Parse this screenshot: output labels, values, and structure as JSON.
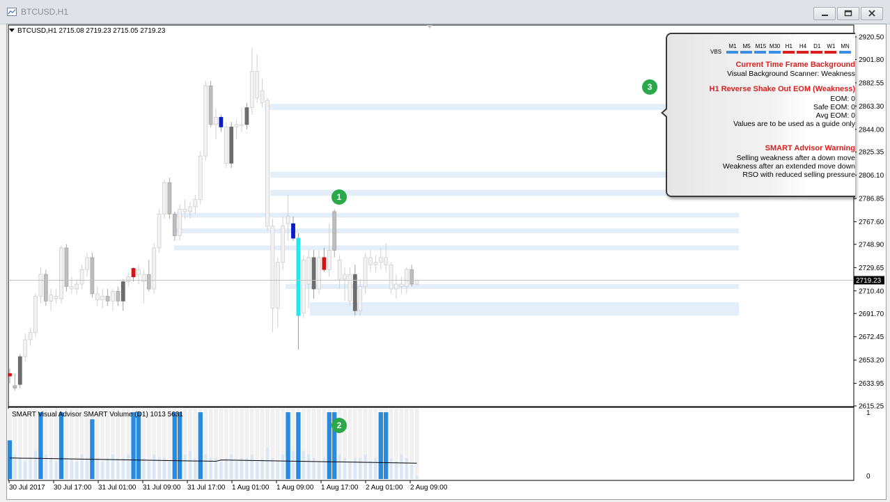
{
  "window": {
    "title": "BTCUSD,H1",
    "buttons": [
      "minimize",
      "restore",
      "close"
    ]
  },
  "chart": {
    "legend": "BTCUSD,H1  2715.08 2719.23 2715.05 2719.23",
    "current_price": "2719.23",
    "price_ticks": [
      "2920.50",
      "2901.80",
      "2882.55",
      "2863.30",
      "2844.00",
      "2825.35",
      "2806.10",
      "2786.85",
      "2767.60",
      "2748.90",
      "2729.65",
      "2710.40",
      "2691.70",
      "2672.45",
      "2653.20",
      "2633.95",
      "2615.25"
    ],
    "indicator_ticks": [
      "1",
      "0"
    ],
    "time_ticks": [
      "30 Jul 2017",
      "30 Jul 17:00",
      "31 Jul 01:00",
      "31 Jul 09:00",
      "31 Jul 17:00",
      "1 Aug 01:00",
      "1 Aug 09:00",
      "1 Aug 17:00",
      "2 Aug 01:00",
      "2 Aug 09:00"
    ],
    "indicator_label": "SMART Visual Advisor  SMART Volume (D1) 1013 5631",
    "colors": {
      "bull_candle": "#f2f2f2",
      "bear_candle": "#bdbdbd",
      "dark_candle": "#6d6d6d",
      "signal_red": "#dd1111",
      "signal_blue": "#0a1cc8",
      "signal_cyan": "#27e6ee",
      "zone": "#e3eef9",
      "vol_blue": "#2a8ae0",
      "vol_light": "#d8e6f5"
    }
  },
  "badges": [
    "1",
    "2",
    "3"
  ],
  "advisor_panel": {
    "timeframes": [
      "M1",
      "M5",
      "M15",
      "M30",
      "H1",
      "H4",
      "D1",
      "W1",
      "MN"
    ],
    "timeframe_colors": [
      "#3a8ee6",
      "#3a8ee6",
      "#3a8ee6",
      "#3a8ee6",
      "#d81e1e",
      "#d81e1e",
      "#d81e1e",
      "#d81e1e",
      "#3a8ee6"
    ],
    "vbs_label": "VBS",
    "section1_title": "Current Time Frame Background",
    "section1_line": "Visual Background Scanner: Weakness",
    "section2_title": "H1 Reverse Shake Out EOM (Weakness)",
    "section2_lines": [
      "EOM: 0",
      "Safe EOM: 0",
      "Avg EOM: 0",
      "Values are to be used as a guide only"
    ],
    "section3_title": "SMART Advisor Warning",
    "section3_lines": [
      "Selling weakness after a down move",
      "Weakness after an extended move down",
      "RSO with reduced selling pressure"
    ]
  },
  "candles": [
    {
      "o": 2640,
      "h": 2646,
      "l": 2634,
      "c": 2642,
      "t": "red"
    },
    {
      "o": 2630,
      "h": 2642,
      "l": 2628,
      "c": 2632,
      "t": "bear"
    },
    {
      "o": 2633,
      "h": 2658,
      "l": 2630,
      "c": 2656,
      "t": "dark"
    },
    {
      "o": 2656,
      "h": 2675,
      "l": 2652,
      "c": 2670,
      "t": "bull"
    },
    {
      "o": 2670,
      "h": 2680,
      "l": 2665,
      "c": 2676,
      "t": "bull"
    },
    {
      "o": 2676,
      "h": 2708,
      "l": 2672,
      "c": 2706,
      "t": "bull"
    },
    {
      "o": 2706,
      "h": 2730,
      "l": 2700,
      "c": 2724,
      "t": "bull"
    },
    {
      "o": 2724,
      "h": 2728,
      "l": 2698,
      "c": 2702,
      "t": "bear"
    },
    {
      "o": 2702,
      "h": 2712,
      "l": 2694,
      "c": 2707,
      "t": "bull"
    },
    {
      "o": 2706,
      "h": 2712,
      "l": 2700,
      "c": 2704,
      "t": "bull"
    },
    {
      "o": 2704,
      "h": 2748,
      "l": 2700,
      "c": 2746,
      "t": "bull"
    },
    {
      "o": 2746,
      "h": 2749,
      "l": 2710,
      "c": 2714,
      "t": "bear"
    },
    {
      "o": 2714,
      "h": 2722,
      "l": 2708,
      "c": 2712,
      "t": "bull"
    },
    {
      "o": 2712,
      "h": 2720,
      "l": 2708,
      "c": 2716,
      "t": "bull"
    },
    {
      "o": 2716,
      "h": 2732,
      "l": 2712,
      "c": 2728,
      "t": "bull"
    },
    {
      "o": 2728,
      "h": 2742,
      "l": 2722,
      "c": 2738,
      "t": "bull"
    },
    {
      "o": 2738,
      "h": 2742,
      "l": 2705,
      "c": 2708,
      "t": "bear"
    },
    {
      "o": 2708,
      "h": 2714,
      "l": 2698,
      "c": 2703,
      "t": "bull"
    },
    {
      "o": 2703,
      "h": 2712,
      "l": 2696,
      "c": 2706,
      "t": "bull"
    },
    {
      "o": 2706,
      "h": 2712,
      "l": 2698,
      "c": 2702,
      "t": "bear"
    },
    {
      "o": 2702,
      "h": 2712,
      "l": 2694,
      "c": 2710,
      "t": "bull"
    },
    {
      "o": 2710,
      "h": 2714,
      "l": 2698,
      "c": 2702,
      "t": "bear"
    },
    {
      "o": 2702,
      "h": 2720,
      "l": 2694,
      "c": 2718,
      "t": "dark"
    },
    {
      "o": 2718,
      "h": 2726,
      "l": 2714,
      "c": 2722,
      "t": "bull"
    },
    {
      "o": 2722,
      "h": 2730,
      "l": 2718,
      "c": 2729,
      "t": "red"
    },
    {
      "o": 2724,
      "h": 2732,
      "l": 2716,
      "c": 2728,
      "t": "bull"
    },
    {
      "o": 2718,
      "h": 2728,
      "l": 2700,
      "c": 2724,
      "t": "bull"
    },
    {
      "o": 2724,
      "h": 2736,
      "l": 2710,
      "c": 2712,
      "t": "bear"
    },
    {
      "o": 2712,
      "h": 2750,
      "l": 2708,
      "c": 2746,
      "t": "bull"
    },
    {
      "o": 2746,
      "h": 2778,
      "l": 2742,
      "c": 2774,
      "t": "bull"
    },
    {
      "o": 2774,
      "h": 2802,
      "l": 2770,
      "c": 2800,
      "t": "bull"
    },
    {
      "o": 2800,
      "h": 2804,
      "l": 2770,
      "c": 2774,
      "t": "bear"
    },
    {
      "o": 2774,
      "h": 2776,
      "l": 2752,
      "c": 2756,
      "t": "bear"
    },
    {
      "o": 2756,
      "h": 2782,
      "l": 2752,
      "c": 2778,
      "t": "bull"
    },
    {
      "o": 2778,
      "h": 2786,
      "l": 2770,
      "c": 2776,
      "t": "bull"
    },
    {
      "o": 2776,
      "h": 2784,
      "l": 2770,
      "c": 2780,
      "t": "bull"
    },
    {
      "o": 2780,
      "h": 2790,
      "l": 2774,
      "c": 2786,
      "t": "bull"
    },
    {
      "o": 2786,
      "h": 2826,
      "l": 2782,
      "c": 2822,
      "t": "bull"
    },
    {
      "o": 2822,
      "h": 2884,
      "l": 2818,
      "c": 2880,
      "t": "bull"
    },
    {
      "o": 2880,
      "h": 2884,
      "l": 2846,
      "c": 2848,
      "t": "bear"
    },
    {
      "o": 2848,
      "h": 2862,
      "l": 2836,
      "c": 2854,
      "t": "bull"
    },
    {
      "o": 2854,
      "h": 2856,
      "l": 2842,
      "c": 2846,
      "t": "blue"
    },
    {
      "o": 2846,
      "h": 2850,
      "l": 2812,
      "c": 2816,
      "t": "bull"
    },
    {
      "o": 2846,
      "h": 2850,
      "l": 2812,
      "c": 2816,
      "t": "dark"
    },
    {
      "o": 2846,
      "h": 2852,
      "l": 2836,
      "c": 2848,
      "t": "bull"
    },
    {
      "o": 2848,
      "h": 2862,
      "l": 2842,
      "c": 2848,
      "t": "bull"
    },
    {
      "o": 2848,
      "h": 2866,
      "l": 2844,
      "c": 2862,
      "t": "dark"
    },
    {
      "o": 2862,
      "h": 2912,
      "l": 2856,
      "c": 2892,
      "t": "bull"
    },
    {
      "o": 2892,
      "h": 2906,
      "l": 2866,
      "c": 2870,
      "t": "bull"
    },
    {
      "o": 2866,
      "h": 2886,
      "l": 2862,
      "c": 2876,
      "t": "bull"
    },
    {
      "o": 2868,
      "h": 2870,
      "l": 2760,
      "c": 2764,
      "t": "bull"
    },
    {
      "o": 2764,
      "h": 2770,
      "l": 2676,
      "c": 2696,
      "t": "bull"
    },
    {
      "o": 2696,
      "h": 2738,
      "l": 2680,
      "c": 2734,
      "t": "bull"
    },
    {
      "o": 2734,
      "h": 2772,
      "l": 2728,
      "c": 2764,
      "t": "bull"
    },
    {
      "o": 2772,
      "h": 2790,
      "l": 2752,
      "c": 2766,
      "t": "bull"
    },
    {
      "o": 2766,
      "h": 2772,
      "l": 2752,
      "c": 2754,
      "t": "blue"
    },
    {
      "o": 2754,
      "h": 2758,
      "l": 2662,
      "c": 2690,
      "t": "cyan"
    },
    {
      "o": 2736,
      "h": 2740,
      "l": 2688,
      "c": 2692,
      "t": "bull"
    },
    {
      "o": 2716,
      "h": 2744,
      "l": 2696,
      "c": 2738,
      "t": "bull"
    },
    {
      "o": 2738,
      "h": 2744,
      "l": 2704,
      "c": 2712,
      "t": "dark"
    },
    {
      "o": 2712,
      "h": 2744,
      "l": 2708,
      "c": 2738,
      "t": "bull"
    },
    {
      "o": 2738,
      "h": 2746,
      "l": 2726,
      "c": 2728,
      "t": "red"
    },
    {
      "o": 2728,
      "h": 2766,
      "l": 2722,
      "c": 2744,
      "t": "bull"
    },
    {
      "o": 2744,
      "h": 2778,
      "l": 2738,
      "c": 2776,
      "t": "bear"
    },
    {
      "o": 2736,
      "h": 2740,
      "l": 2712,
      "c": 2720,
      "t": "bull"
    },
    {
      "o": 2720,
      "h": 2730,
      "l": 2702,
      "c": 2724,
      "t": "bull"
    },
    {
      "o": 2724,
      "h": 2730,
      "l": 2698,
      "c": 2702,
      "t": "bull"
    },
    {
      "o": 2724,
      "h": 2732,
      "l": 2690,
      "c": 2694,
      "t": "dark"
    },
    {
      "o": 2694,
      "h": 2720,
      "l": 2690,
      "c": 2714,
      "t": "bull"
    },
    {
      "o": 2714,
      "h": 2742,
      "l": 2708,
      "c": 2738,
      "t": "bull"
    },
    {
      "o": 2738,
      "h": 2744,
      "l": 2726,
      "c": 2732,
      "t": "bull"
    },
    {
      "o": 2732,
      "h": 2740,
      "l": 2726,
      "c": 2734,
      "t": "bull"
    },
    {
      "o": 2734,
      "h": 2746,
      "l": 2728,
      "c": 2738,
      "t": "bull"
    },
    {
      "o": 2738,
      "h": 2750,
      "l": 2726,
      "c": 2732,
      "t": "bull"
    },
    {
      "o": 2732,
      "h": 2734,
      "l": 2708,
      "c": 2712,
      "t": "bull"
    },
    {
      "o": 2712,
      "h": 2724,
      "l": 2704,
      "c": 2716,
      "t": "bull"
    },
    {
      "o": 2716,
      "h": 2722,
      "l": 2708,
      "c": 2714,
      "t": "bull"
    },
    {
      "o": 2714,
      "h": 2730,
      "l": 2708,
      "c": 2728,
      "t": "bull"
    },
    {
      "o": 2728,
      "h": 2732,
      "l": 2714,
      "c": 2716,
      "t": "bear"
    },
    {
      "o": 2716,
      "h": 2720,
      "l": 2715,
      "c": 2719,
      "t": "bull"
    }
  ],
  "zones": [
    {
      "from": 2860,
      "to": 2865
    },
    {
      "from": 2804,
      "to": 2809
    },
    {
      "from": 2789,
      "to": 2794
    },
    {
      "from": 2771,
      "to": 2775
    },
    {
      "from": 2758,
      "to": 2762
    },
    {
      "from": 2744,
      "to": 2748
    },
    {
      "from": 2712,
      "to": 2716
    },
    {
      "from": 2690,
      "to": 2701
    }
  ],
  "volume": [
    {
      "v": 0.55,
      "t": "blue"
    },
    {
      "v": 0.35,
      "t": "light"
    },
    {
      "v": 0.3,
      "t": "light"
    },
    {
      "v": 0.25,
      "t": "light"
    },
    {
      "v": 0.3,
      "t": "light"
    },
    {
      "v": 0.4,
      "t": "light"
    },
    {
      "v": 0.95,
      "t": "blue"
    },
    {
      "v": 0.35,
      "t": "light"
    },
    {
      "v": 0.3,
      "t": "light"
    },
    {
      "v": 0.25,
      "t": "light"
    },
    {
      "v": 0.95,
      "t": "blue"
    },
    {
      "v": 0.3,
      "t": "light"
    },
    {
      "v": 0.28,
      "t": "light"
    },
    {
      "v": 0.25,
      "t": "light"
    },
    {
      "v": 0.35,
      "t": "light"
    },
    {
      "v": 0.3,
      "t": "light"
    },
    {
      "v": 0.85,
      "t": "blue"
    },
    {
      "v": 0.3,
      "t": "light"
    },
    {
      "v": 0.25,
      "t": "light"
    },
    {
      "v": 0.3,
      "t": "light"
    },
    {
      "v": 0.35,
      "t": "light"
    },
    {
      "v": 0.3,
      "t": "light"
    },
    {
      "v": 0.3,
      "t": "light"
    },
    {
      "v": 0.35,
      "t": "light"
    },
    {
      "v": 0.95,
      "t": "blue"
    },
    {
      "v": 0.95,
      "t": "blue"
    },
    {
      "v": 0.3,
      "t": "light"
    },
    {
      "v": 0.25,
      "t": "light"
    },
    {
      "v": 0.35,
      "t": "light"
    },
    {
      "v": 0.3,
      "t": "light"
    },
    {
      "v": 0.3,
      "t": "light"
    },
    {
      "v": 0.25,
      "t": "light"
    },
    {
      "v": 0.95,
      "t": "blue"
    },
    {
      "v": 0.95,
      "t": "blue"
    },
    {
      "v": 0.35,
      "t": "light"
    },
    {
      "v": 0.4,
      "t": "light"
    },
    {
      "v": 0.3,
      "t": "light"
    },
    {
      "v": 0.95,
      "t": "blue"
    },
    {
      "v": 0.35,
      "t": "light"
    },
    {
      "v": 0.3,
      "t": "light"
    },
    {
      "v": 0.3,
      "t": "light"
    },
    {
      "v": 0.25,
      "t": "light"
    },
    {
      "v": 0.3,
      "t": "light"
    },
    {
      "v": 0.35,
      "t": "light"
    },
    {
      "v": 0.25,
      "t": "light"
    },
    {
      "v": 0.3,
      "t": "light"
    },
    {
      "v": 0.3,
      "t": "light"
    },
    {
      "v": 0.35,
      "t": "light"
    },
    {
      "v": 0.25,
      "t": "light"
    },
    {
      "v": 0.3,
      "t": "light"
    },
    {
      "v": 0.45,
      "t": "light"
    },
    {
      "v": 0.3,
      "t": "light"
    },
    {
      "v": 0.25,
      "t": "light"
    },
    {
      "v": 0.35,
      "t": "light"
    },
    {
      "v": 0.95,
      "t": "blue"
    },
    {
      "v": 0.4,
      "t": "light"
    },
    {
      "v": 0.95,
      "t": "blue"
    },
    {
      "v": 0.4,
      "t": "light"
    },
    {
      "v": 0.35,
      "t": "light"
    },
    {
      "v": 0.3,
      "t": "light"
    },
    {
      "v": 0.25,
      "t": "light"
    },
    {
      "v": 0.3,
      "t": "light"
    },
    {
      "v": 0.95,
      "t": "blue"
    },
    {
      "v": 0.95,
      "t": "blue"
    },
    {
      "v": 0.35,
      "t": "light"
    },
    {
      "v": 0.3,
      "t": "light"
    },
    {
      "v": 0.25,
      "t": "light"
    },
    {
      "v": 0.3,
      "t": "light"
    },
    {
      "v": 0.3,
      "t": "light"
    },
    {
      "v": 0.35,
      "t": "light"
    },
    {
      "v": 0.25,
      "t": "light"
    },
    {
      "v": 0.3,
      "t": "light"
    },
    {
      "v": 0.95,
      "t": "blue"
    },
    {
      "v": 0.95,
      "t": "blue"
    },
    {
      "v": 0.3,
      "t": "light"
    },
    {
      "v": 0.25,
      "t": "light"
    },
    {
      "v": 0.35,
      "t": "light"
    },
    {
      "v": 0.3,
      "t": "light"
    },
    {
      "v": 0.2,
      "t": "light"
    },
    {
      "v": 0.05,
      "t": "light"
    }
  ]
}
